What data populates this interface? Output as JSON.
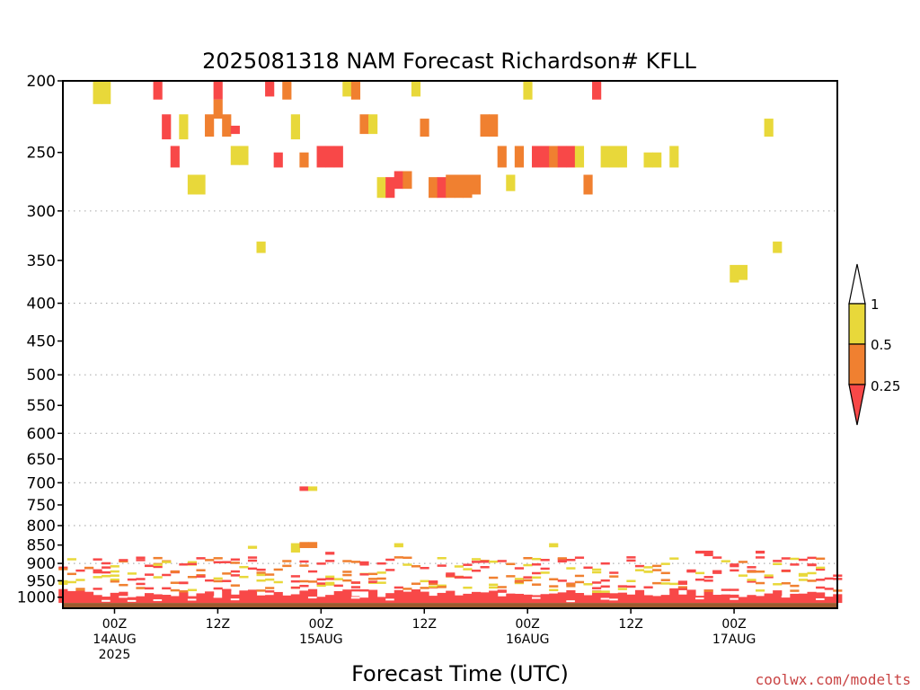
{
  "chart_data": {
    "type": "heatmap",
    "title": "2025081318 NAM Forecast Richardson# KFLL",
    "xlabel": "Forecast Time (UTC)",
    "ylabel": "",
    "y_scale": "log",
    "y_reversed": true,
    "ylim": [
      1035,
      200
    ],
    "xlim": [
      "2025-08-13T18:00Z",
      "2025-08-17T12:00Z"
    ],
    "y_ticks": [
      200,
      250,
      300,
      350,
      400,
      450,
      500,
      550,
      600,
      650,
      700,
      750,
      800,
      850,
      900,
      950,
      1000
    ],
    "y_tick_labels": [
      "200",
      "250",
      "300",
      "350",
      "400",
      "450",
      "500",
      "550",
      "600",
      "650",
      "700",
      "750",
      "800",
      "850",
      "900",
      "950",
      "1000"
    ],
    "gridlines_at": [
      300,
      400,
      500,
      600,
      700,
      800,
      900
    ],
    "x_ticks": [
      {
        "time": "2025-08-14T00:00Z",
        "lines": [
          "00Z",
          "14AUG",
          "2025"
        ]
      },
      {
        "time": "2025-08-14T12:00Z",
        "lines": [
          "12Z"
        ]
      },
      {
        "time": "2025-08-15T00:00Z",
        "lines": [
          "00Z",
          "15AUG"
        ]
      },
      {
        "time": "2025-08-15T12:00Z",
        "lines": [
          "12Z"
        ]
      },
      {
        "time": "2025-08-16T00:00Z",
        "lines": [
          "00Z",
          "16AUG"
        ]
      },
      {
        "time": "2025-08-16T12:00Z",
        "lines": [
          "12Z"
        ]
      },
      {
        "time": "2025-08-17T00:00Z",
        "lines": [
          "00Z",
          "17AUG"
        ]
      }
    ],
    "legend": {
      "placement": "right",
      "labels": [
        "1",
        "0.5",
        "0.25"
      ],
      "bins": [
        {
          "range": "0.5-1",
          "color": "#e8d83a"
        },
        {
          "range": "0.25-0.5",
          "color": "#f08030"
        },
        {
          "range": "<0.25",
          "color": "#f84848"
        }
      ]
    },
    "colors": {
      "high": "#e8d83a",
      "mid": "#f08030",
      "low": "#f84848",
      "ground": "#9b5a2e",
      "grid": "#b0b0b0"
    },
    "cells": [
      {
        "t": "2025-08-13T22:00Z",
        "p1": 200,
        "p2": 215,
        "c": "high"
      },
      {
        "t": "2025-08-13T23:00Z",
        "p1": 200,
        "p2": 215,
        "c": "high"
      },
      {
        "t": "2025-08-14T05:00Z",
        "p1": 200,
        "p2": 212,
        "c": "low"
      },
      {
        "t": "2025-08-14T06:00Z",
        "p1": 222,
        "p2": 240,
        "c": "low"
      },
      {
        "t": "2025-08-14T07:00Z",
        "p1": 245,
        "p2": 262,
        "c": "low"
      },
      {
        "t": "2025-08-14T08:00Z",
        "p1": 222,
        "p2": 240,
        "c": "high"
      },
      {
        "t": "2025-08-14T09:00Z",
        "p1": 268,
        "p2": 285,
        "c": "high"
      },
      {
        "t": "2025-08-14T10:00Z",
        "p1": 268,
        "p2": 285,
        "c": "high"
      },
      {
        "t": "2025-08-14T11:00Z",
        "p1": 222,
        "p2": 238,
        "c": "mid"
      },
      {
        "t": "2025-08-14T12:00Z",
        "p1": 200,
        "p2": 212,
        "c": "low"
      },
      {
        "t": "2025-08-14T12:00Z",
        "p1": 212,
        "p2": 225,
        "c": "mid"
      },
      {
        "t": "2025-08-14T13:00Z",
        "p1": 222,
        "p2": 238,
        "c": "mid"
      },
      {
        "t": "2025-08-14T14:00Z",
        "p1": 230,
        "p2": 236,
        "c": "low"
      },
      {
        "t": "2025-08-14T14:00Z",
        "p1": 245,
        "p2": 260,
        "c": "high"
      },
      {
        "t": "2025-08-14T15:00Z",
        "p1": 245,
        "p2": 260,
        "c": "high"
      },
      {
        "t": "2025-08-14T17:00Z",
        "p1": 330,
        "p2": 342,
        "c": "high"
      },
      {
        "t": "2025-08-14T18:00Z",
        "p1": 200,
        "p2": 210,
        "c": "low"
      },
      {
        "t": "2025-08-14T19:00Z",
        "p1": 250,
        "p2": 262,
        "c": "low"
      },
      {
        "t": "2025-08-14T20:00Z",
        "p1": 200,
        "p2": 212,
        "c": "mid"
      },
      {
        "t": "2025-08-14T21:00Z",
        "p1": 222,
        "p2": 240,
        "c": "high"
      },
      {
        "t": "2025-08-14T22:00Z",
        "p1": 708,
        "p2": 718,
        "c": "low"
      },
      {
        "t": "2025-08-14T22:00Z",
        "p1": 250,
        "p2": 262,
        "c": "mid"
      },
      {
        "t": "2025-08-14T23:00Z",
        "p1": 708,
        "p2": 718,
        "c": "high"
      },
      {
        "t": "2025-08-15T00:00Z",
        "p1": 245,
        "p2": 262,
        "c": "low"
      },
      {
        "t": "2025-08-15T01:00Z",
        "p1": 245,
        "p2": 262,
        "c": "low"
      },
      {
        "t": "2025-08-15T02:00Z",
        "p1": 245,
        "p2": 262,
        "c": "low"
      },
      {
        "t": "2025-08-15T03:00Z",
        "p1": 200,
        "p2": 210,
        "c": "high"
      },
      {
        "t": "2025-08-15T04:00Z",
        "p1": 200,
        "p2": 212,
        "c": "mid"
      },
      {
        "t": "2025-08-15T05:00Z",
        "p1": 222,
        "p2": 236,
        "c": "mid"
      },
      {
        "t": "2025-08-15T06:00Z",
        "p1": 222,
        "p2": 236,
        "c": "high"
      },
      {
        "t": "2025-08-15T07:00Z",
        "p1": 270,
        "p2": 288,
        "c": "high"
      },
      {
        "t": "2025-08-15T08:00Z",
        "p1": 270,
        "p2": 288,
        "c": "low"
      },
      {
        "t": "2025-08-15T09:00Z",
        "p1": 265,
        "p2": 280,
        "c": "low"
      },
      {
        "t": "2025-08-15T10:00Z",
        "p1": 265,
        "p2": 280,
        "c": "mid"
      },
      {
        "t": "2025-08-15T11:00Z",
        "p1": 200,
        "p2": 210,
        "c": "high"
      },
      {
        "t": "2025-08-15T12:00Z",
        "p1": 225,
        "p2": 238,
        "c": "mid"
      },
      {
        "t": "2025-08-15T13:00Z",
        "p1": 270,
        "p2": 288,
        "c": "mid"
      },
      {
        "t": "2025-08-15T14:00Z",
        "p1": 270,
        "p2": 288,
        "c": "low"
      },
      {
        "t": "2025-08-15T15:00Z",
        "p1": 268,
        "p2": 288,
        "c": "mid"
      },
      {
        "t": "2025-08-15T16:00Z",
        "p1": 268,
        "p2": 288,
        "c": "mid"
      },
      {
        "t": "2025-08-15T17:00Z",
        "p1": 268,
        "p2": 288,
        "c": "mid"
      },
      {
        "t": "2025-08-15T18:00Z",
        "p1": 268,
        "p2": 285,
        "c": "mid"
      },
      {
        "t": "2025-08-15T19:00Z",
        "p1": 222,
        "p2": 238,
        "c": "mid"
      },
      {
        "t": "2025-08-15T20:00Z",
        "p1": 222,
        "p2": 238,
        "c": "mid"
      },
      {
        "t": "2025-08-15T21:00Z",
        "p1": 245,
        "p2": 262,
        "c": "mid"
      },
      {
        "t": "2025-08-15T22:00Z",
        "p1": 268,
        "p2": 282,
        "c": "high"
      },
      {
        "t": "2025-08-15T23:00Z",
        "p1": 245,
        "p2": 262,
        "c": "mid"
      },
      {
        "t": "2025-08-16T00:00Z",
        "p1": 200,
        "p2": 212,
        "c": "high"
      },
      {
        "t": "2025-08-16T01:00Z",
        "p1": 245,
        "p2": 262,
        "c": "low"
      },
      {
        "t": "2025-08-16T02:00Z",
        "p1": 245,
        "p2": 262,
        "c": "low"
      },
      {
        "t": "2025-08-16T03:00Z",
        "p1": 245,
        "p2": 262,
        "c": "mid"
      },
      {
        "t": "2025-08-16T04:00Z",
        "p1": 245,
        "p2": 262,
        "c": "low"
      },
      {
        "t": "2025-08-16T05:00Z",
        "p1": 245,
        "p2": 262,
        "c": "low"
      },
      {
        "t": "2025-08-16T06:00Z",
        "p1": 245,
        "p2": 262,
        "c": "high"
      },
      {
        "t": "2025-08-16T07:00Z",
        "p1": 268,
        "p2": 285,
        "c": "mid"
      },
      {
        "t": "2025-08-16T08:00Z",
        "p1": 200,
        "p2": 212,
        "c": "low"
      },
      {
        "t": "2025-08-16T09:00Z",
        "p1": 245,
        "p2": 262,
        "c": "high"
      },
      {
        "t": "2025-08-16T10:00Z",
        "p1": 245,
        "p2": 262,
        "c": "high"
      },
      {
        "t": "2025-08-16T11:00Z",
        "p1": 245,
        "p2": 262,
        "c": "high"
      },
      {
        "t": "2025-08-16T14:00Z",
        "p1": 250,
        "p2": 262,
        "c": "high"
      },
      {
        "t": "2025-08-16T15:00Z",
        "p1": 250,
        "p2": 262,
        "c": "high"
      },
      {
        "t": "2025-08-16T17:00Z",
        "p1": 245,
        "p2": 262,
        "c": "high"
      },
      {
        "t": "2025-08-17T00:00Z",
        "p1": 355,
        "p2": 375,
        "c": "high"
      },
      {
        "t": "2025-08-17T01:00Z",
        "p1": 355,
        "p2": 372,
        "c": "high"
      },
      {
        "t": "2025-08-17T04:00Z",
        "p1": 225,
        "p2": 238,
        "c": "high"
      },
      {
        "t": "2025-08-17T05:00Z",
        "p1": 330,
        "p2": 342,
        "c": "high"
      },
      {
        "t": "2025-08-14T16:00Z",
        "p1": 852,
        "p2": 860,
        "c": "high"
      },
      {
        "t": "2025-08-14T21:00Z",
        "p1": 845,
        "p2": 870,
        "c": "high"
      },
      {
        "t": "2025-08-14T22:00Z",
        "p1": 842,
        "p2": 858,
        "c": "mid"
      },
      {
        "t": "2025-08-14T23:00Z",
        "p1": 842,
        "p2": 858,
        "c": "mid"
      },
      {
        "t": "2025-08-15T01:00Z",
        "p1": 868,
        "p2": 876,
        "c": "low"
      },
      {
        "t": "2025-08-15T09:00Z",
        "p1": 845,
        "p2": 856,
        "c": "high"
      },
      {
        "t": "2025-08-16T03:00Z",
        "p1": 845,
        "p2": 856,
        "c": "high"
      },
      {
        "t": "2025-08-16T20:00Z",
        "p1": 865,
        "p2": 873,
        "c": "low"
      },
      {
        "t": "2025-08-16T21:00Z",
        "p1": 865,
        "p2": 880,
        "c": "low"
      },
      {
        "t": "2025-08-17T03:00Z",
        "p1": 865,
        "p2": 873,
        "c": "low"
      }
    ]
  },
  "watermark": "coolwx.com/modelts"
}
